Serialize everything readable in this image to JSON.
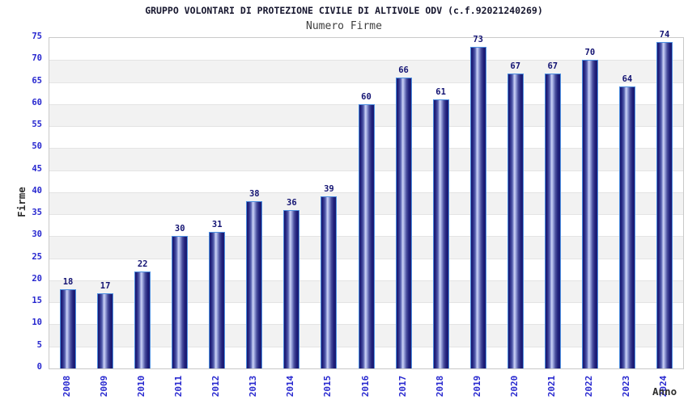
{
  "page": {
    "title": "GRUPPO VOLONTARI DI PROTEZIONE CIVILE DI ALTIVOLE ODV (c.f.92021240269)",
    "subtitle": "Numero Firme"
  },
  "chart_data": {
    "type": "bar",
    "title": "GRUPPO VOLONTARI DI PROTEZIONE CIVILE DI ALTIVOLE ODV (c.f.92021240269)",
    "subtitle": "Numero Firme",
    "categories": [
      "2008",
      "2009",
      "2010",
      "2011",
      "2012",
      "2013",
      "2014",
      "2015",
      "2016",
      "2017",
      "2018",
      "2019",
      "2020",
      "2021",
      "2022",
      "2023",
      "2024"
    ],
    "values": [
      18,
      17,
      22,
      30,
      31,
      38,
      36,
      39,
      60,
      66,
      61,
      73,
      67,
      67,
      70,
      64,
      74
    ],
    "xlabel": "Anno",
    "ylabel": "Firme",
    "ylim": [
      0,
      75
    ],
    "ytick_step": 5,
    "grid": "horizontal bands, alternating white and light gray every 5 units",
    "legend": "none",
    "bar_labels": "value shown above each bar",
    "colors": {
      "tick_label_blue": "#2727cf",
      "value_label_navy": "#141473",
      "bar_gradient_dark": "#191970",
      "bar_gradient_light": "#ccd2f4",
      "bar_border": "#4d8fe0",
      "band_gray": "#f2f2f2",
      "plot_border": "#c9c9c9",
      "title_color": "#16162e",
      "subtitle_color": "#3f3f3f",
      "axis_title_color": "#2e2e2e"
    }
  }
}
